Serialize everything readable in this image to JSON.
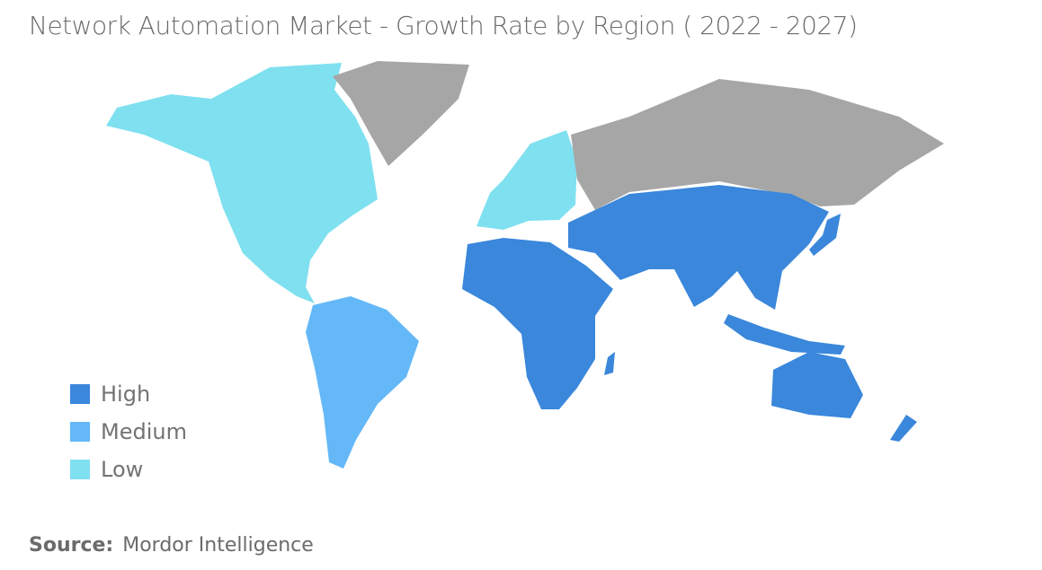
{
  "title": "Network Automation Market - Growth Rate by Region ( 2022  - 2027)",
  "legend": [
    {
      "label": "High",
      "color": "#3a87db"
    },
    {
      "label": "Medium",
      "color": "#64b8f8"
    },
    {
      "label": "Low",
      "color": "#7fe0f0"
    }
  ],
  "no_data_color": "#a6a6a6",
  "regions": {
    "North America": "Low",
    "Europe": "Low",
    "South America": "Medium",
    "Asia-Pacific": "High",
    "Middle East and Africa": "High"
  },
  "source": {
    "label": "Source:",
    "value": "Mordor Intelligence"
  }
}
